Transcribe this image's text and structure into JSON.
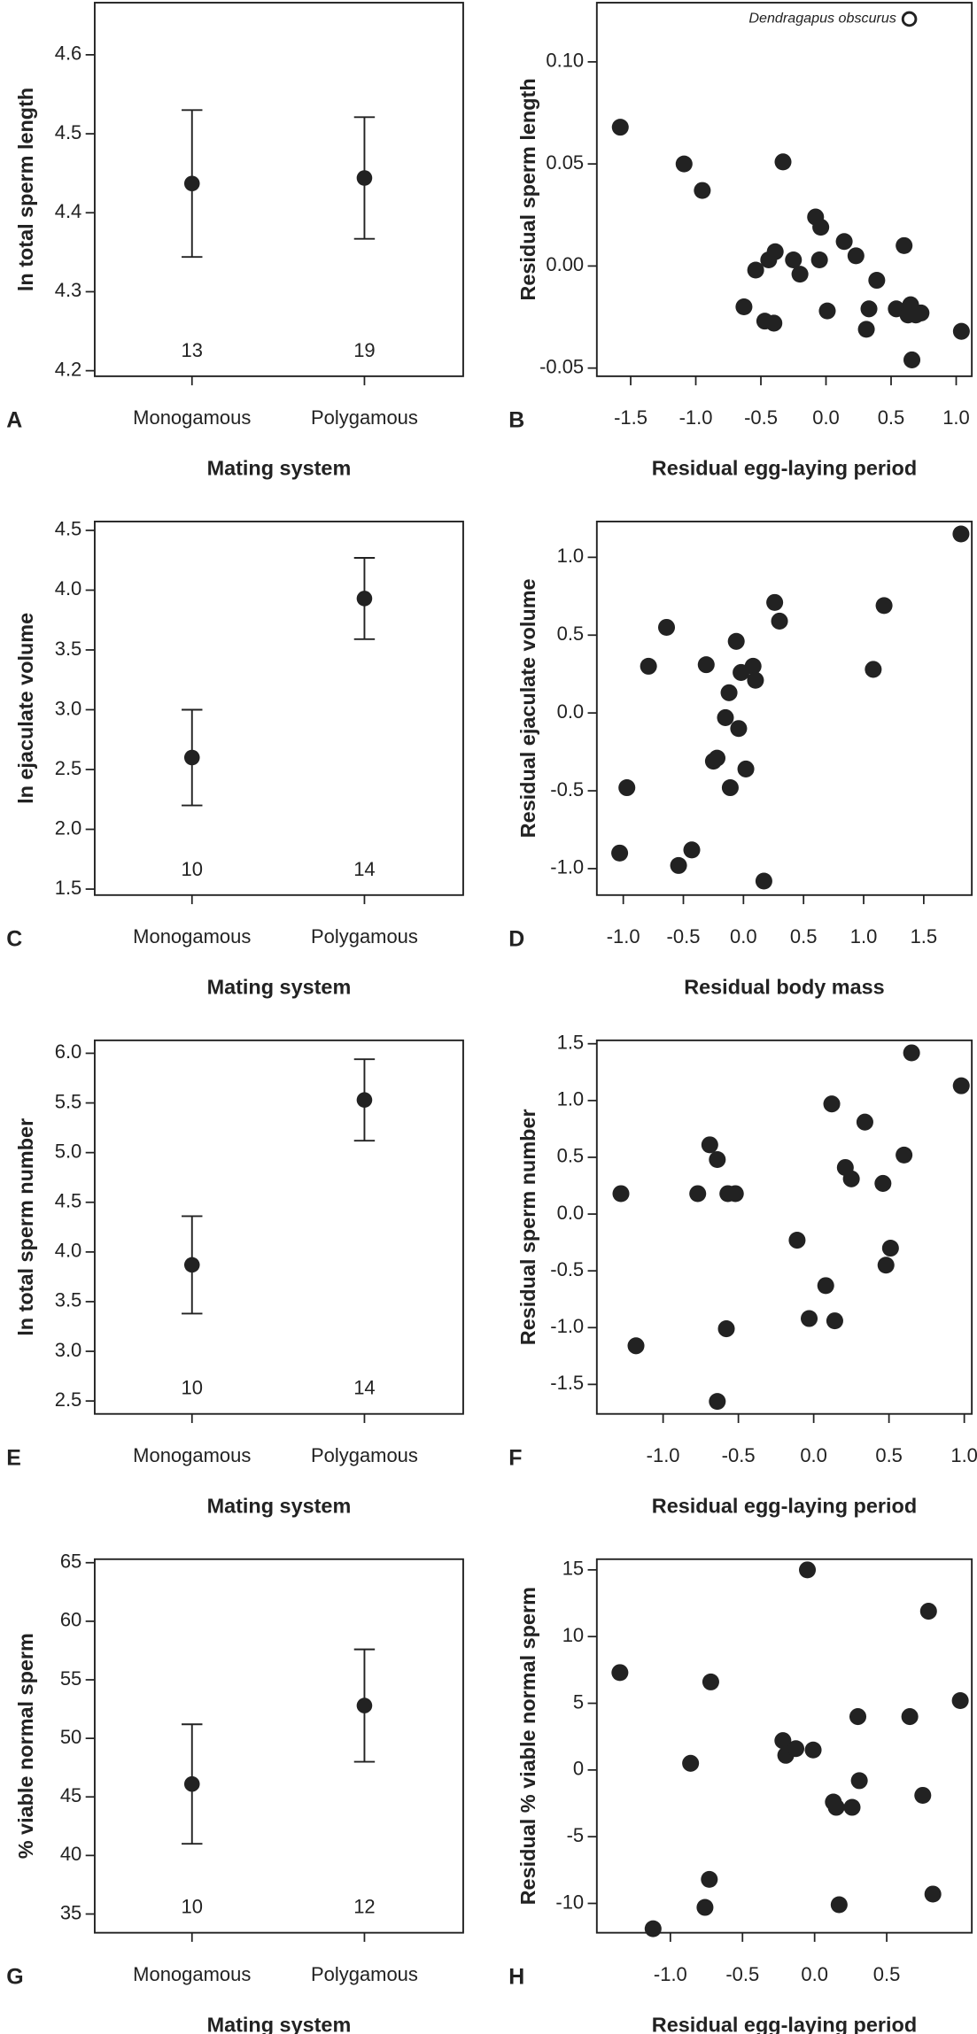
{
  "chart_data": [
    {
      "type": "errorbar",
      "panel": "A",
      "categories": [
        "Monogamous",
        "Polygamous"
      ],
      "values": [
        4.437,
        4.444
      ],
      "errors": [
        0.093,
        0.077
      ],
      "n": [
        13,
        19
      ],
      "xlabel": "Mating system",
      "ylabel": "ln total sperm length",
      "ylim": [
        4.193,
        4.666
      ],
      "yticks": [
        4.2,
        4.3,
        4.4,
        4.5,
        4.6
      ],
      "color": "#222222"
    },
    {
      "type": "scatter",
      "panel": "B",
      "xlabel": "Residual egg-laying period",
      "ylabel": "Residual sperm length",
      "color": "#222222",
      "x": [
        -1.58,
        -1.09,
        -0.95,
        -0.33,
        -0.63,
        -0.54,
        -0.44,
        -0.39,
        -0.47,
        -0.4,
        -0.25,
        -0.2,
        -0.08,
        -0.04,
        -0.05,
        0.01,
        0.14,
        0.23,
        0.31,
        0.33,
        0.39,
        0.54,
        0.6,
        0.65,
        0.63,
        0.69,
        0.66,
        0.73,
        1.04
      ],
      "values": [
        0.068,
        0.05,
        0.037,
        0.051,
        -0.02,
        -0.002,
        0.003,
        0.007,
        -0.027,
        -0.028,
        0.003,
        -0.004,
        0.024,
        0.019,
        0.003,
        -0.022,
        0.012,
        0.005,
        -0.031,
        -0.021,
        -0.007,
        -0.021,
        0.01,
        -0.019,
        -0.024,
        -0.024,
        -0.046,
        -0.023,
        -0.032
      ],
      "annotations": [
        {
          "text": "Dendragapus obscurus",
          "x": 0.64,
          "y": 0.121
        }
      ],
      "xlim": [
        -1.76,
        1.12
      ],
      "xticks": [
        -1.5,
        {
          "value": -1,
          "label": "-1.0"
        },
        -0.5,
        {
          "value": 0,
          "label": "0.0"
        },
        0.5,
        {
          "value": 1,
          "label": "1.0"
        }
      ],
      "ylim": [
        -0.054,
        0.129
      ],
      "yticks": [
        -0.05,
        {
          "value": 0,
          "label": "0.00"
        },
        0.05,
        {
          "value": 0.1,
          "label": "0.10"
        }
      ]
    },
    {
      "type": "errorbar",
      "panel": "C",
      "categories": [
        "Monogamous",
        "Polygamous"
      ],
      "values": [
        2.6,
        3.93
      ],
      "errors": [
        0.4,
        0.34
      ],
      "n": [
        10,
        14
      ],
      "xlabel": "Mating system",
      "ylabel": "ln ejaculate volume",
      "ylim": [
        1.45,
        4.574
      ],
      "yticks": [
        1.5,
        {
          "value": 2,
          "label": "2.0"
        },
        2.5,
        {
          "value": 3,
          "label": "3.0"
        },
        3.5,
        {
          "value": 4,
          "label": "4.0"
        },
        4.5
      ],
      "color": "#222222"
    },
    {
      "type": "scatter",
      "panel": "D",
      "xlabel": "Residual body mass",
      "ylabel": "Residual ejaculate volume",
      "color": "#222222",
      "x": [
        -1.03,
        -0.97,
        -0.79,
        -0.64,
        -0.54,
        -0.43,
        -0.31,
        -0.25,
        -0.22,
        -0.15,
        -0.12,
        -0.11,
        -0.06,
        -0.04,
        -0.02,
        0.02,
        0.08,
        0.1,
        0.17,
        0.26,
        0.3,
        1.17,
        1.08,
        1.81
      ],
      "values": [
        -0.9,
        -0.48,
        0.3,
        0.55,
        -0.98,
        -0.88,
        0.31,
        -0.31,
        -0.29,
        -0.03,
        0.13,
        -0.48,
        0.46,
        -0.1,
        0.26,
        -0.36,
        0.3,
        0.21,
        -1.08,
        0.71,
        0.59,
        0.69,
        0.28,
        1.15
      ],
      "xlim": [
        -1.22,
        1.9
      ],
      "xticks": [
        {
          "value": -1,
          "label": "-1.0"
        },
        -0.5,
        {
          "value": 0,
          "label": "0.0"
        },
        0.5,
        {
          "value": 1,
          "label": "1.0"
        },
        1.5
      ],
      "ylim": [
        -1.17,
        1.23
      ],
      "yticks": [
        {
          "value": -1,
          "label": "-1.0"
        },
        -0.5,
        {
          "value": 0,
          "label": "0.0"
        },
        0.5,
        {
          "value": 1,
          "label": "1.0"
        }
      ]
    },
    {
      "type": "errorbar",
      "panel": "E",
      "categories": [
        "Monogamous",
        "Polygamous"
      ],
      "values": [
        3.87,
        5.53
      ],
      "errors": [
        0.49,
        0.41
      ],
      "n": [
        10,
        14
      ],
      "xlabel": "Mating system",
      "ylabel": "ln total sperm number",
      "ylim": [
        2.37,
        6.13
      ],
      "yticks": [
        2.5,
        {
          "value": 3,
          "label": "3.0"
        },
        3.5,
        {
          "value": 4,
          "label": "4.0"
        },
        4.5,
        {
          "value": 5,
          "label": "5.0"
        },
        5.5,
        {
          "value": 6,
          "label": "6.0"
        }
      ],
      "color": "#222222"
    },
    {
      "type": "scatter",
      "panel": "F",
      "xlabel": "Residual egg-laying period",
      "ylabel": "Residual sperm number",
      "color": "#222222",
      "x": [
        -1.28,
        -1.18,
        -0.77,
        -0.69,
        -0.64,
        -0.58,
        -0.64,
        -0.57,
        -0.52,
        -0.11,
        -0.03,
        0.08,
        0.12,
        0.14,
        0.21,
        0.25,
        0.34,
        0.46,
        0.48,
        0.51,
        0.6,
        0.65,
        0.98
      ],
      "values": [
        0.18,
        -1.16,
        0.18,
        0.61,
        0.48,
        -1.01,
        -1.65,
        0.18,
        0.18,
        -0.23,
        -0.92,
        -0.63,
        0.97,
        -0.94,
        0.41,
        0.31,
        0.81,
        0.27,
        -0.45,
        -0.3,
        0.52,
        1.42,
        1.13
      ],
      "xlim": [
        -1.44,
        1.05
      ],
      "xticks": [
        {
          "value": -1,
          "label": "-1.0"
        },
        -0.5,
        {
          "value": 0,
          "label": "0.0"
        },
        0.5,
        {
          "value": 1,
          "label": "1.0"
        }
      ],
      "ylim": [
        -1.76,
        1.53
      ],
      "yticks": [
        -1.5,
        {
          "value": -1,
          "label": "-1.0"
        },
        -0.5,
        {
          "value": 0,
          "label": "0.0"
        },
        0.5,
        {
          "value": 1,
          "label": "1.0"
        },
        1.5
      ]
    },
    {
      "type": "errorbar",
      "panel": "G",
      "categories": [
        "Monogamous",
        "Polygamous"
      ],
      "values": [
        46.1,
        52.8
      ],
      "errors": [
        5.1,
        4.8
      ],
      "n": [
        10,
        12
      ],
      "xlabel": "Mating system",
      "ylabel": "% viable normal sperm",
      "ylim": [
        33.4,
        65.3
      ],
      "yticks": [
        35,
        40,
        45,
        50,
        55,
        60,
        65
      ],
      "color": "#222222"
    },
    {
      "type": "scatter",
      "panel": "H",
      "xlabel": "Residual egg-laying period",
      "ylabel": "Residual % viable normal sperm",
      "color": "#222222",
      "x": [
        -1.35,
        -1.12,
        -0.86,
        -0.72,
        -0.73,
        -0.76,
        -0.22,
        -0.2,
        -0.13,
        -0.05,
        -0.01,
        0.13,
        0.15,
        0.17,
        0.26,
        0.3,
        0.31,
        0.66,
        0.75,
        0.79,
        0.82,
        1.01
      ],
      "values": [
        7.3,
        -11.9,
        0.5,
        6.6,
        -8.2,
        -10.3,
        2.2,
        1.1,
        1.6,
        15.0,
        1.5,
        -2.4,
        -2.8,
        -10.1,
        -2.8,
        4.0,
        -0.8,
        4.0,
        -1.9,
        11.9,
        -9.3,
        5.2
      ],
      "xlim": [
        -1.51,
        1.09
      ],
      "xticks": [
        {
          "value": -1,
          "label": "-1.0"
        },
        -0.5,
        {
          "value": 0,
          "label": "0.0"
        },
        0.5
      ],
      "ylim": [
        -12.2,
        15.8
      ],
      "yticks": [
        -10,
        -5,
        0,
        5,
        10,
        15
      ]
    }
  ]
}
